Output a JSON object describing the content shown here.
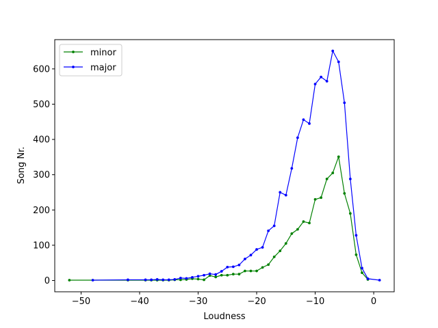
{
  "chart_data": {
    "type": "line",
    "title": "",
    "xlabel": "Loudness",
    "ylabel": "Song Nr.",
    "xlim": [
      -54.5,
      3.5
    ],
    "ylim": [
      -32,
      683
    ],
    "xticks": [
      -50,
      -40,
      -30,
      -20,
      -10,
      0
    ],
    "xtick_labels": [
      "−50",
      "−40",
      "−30",
      "−20",
      "−10",
      "0"
    ],
    "yticks": [
      0,
      100,
      200,
      300,
      400,
      500,
      600
    ],
    "ytick_labels": [
      "0",
      "100",
      "200",
      "300",
      "400",
      "500",
      "600"
    ],
    "grid": false,
    "legend_position": "top-left",
    "series": [
      {
        "name": "minor",
        "color": "#008000",
        "points": [
          [
            -52,
            1
          ],
          [
            -42,
            1
          ],
          [
            -39,
            1
          ],
          [
            -38,
            1
          ],
          [
            -37,
            1
          ],
          [
            -36,
            1
          ],
          [
            -35,
            1
          ],
          [
            -34,
            2
          ],
          [
            -33,
            2
          ],
          [
            -32,
            3
          ],
          [
            -31,
            5
          ],
          [
            -30,
            4
          ],
          [
            -29,
            2
          ],
          [
            -28,
            14
          ],
          [
            -27,
            10
          ],
          [
            -26,
            15
          ],
          [
            -25,
            15
          ],
          [
            -24,
            18
          ],
          [
            -23,
            18
          ],
          [
            -22,
            27
          ],
          [
            -21,
            27
          ],
          [
            -20,
            27
          ],
          [
            -19,
            37
          ],
          [
            -18,
            45
          ],
          [
            -17,
            67
          ],
          [
            -16,
            84
          ],
          [
            -15,
            105
          ],
          [
            -14,
            133
          ],
          [
            -13,
            145
          ],
          [
            -12,
            167
          ],
          [
            -11,
            163
          ],
          [
            -10,
            230
          ],
          [
            -9,
            235
          ],
          [
            -8,
            288
          ],
          [
            -7,
            305
          ],
          [
            -6,
            351
          ],
          [
            -5,
            247
          ],
          [
            -4,
            190
          ],
          [
            -3,
            73
          ],
          [
            -2,
            22
          ],
          [
            -1,
            3
          ]
        ]
      },
      {
        "name": "major",
        "color": "#0000ff",
        "points": [
          [
            -48,
            1
          ],
          [
            -42,
            2
          ],
          [
            -39,
            2
          ],
          [
            -38,
            2
          ],
          [
            -37,
            3
          ],
          [
            -36,
            2
          ],
          [
            -35,
            2
          ],
          [
            -34,
            3
          ],
          [
            -33,
            7
          ],
          [
            -32,
            6
          ],
          [
            -31,
            9
          ],
          [
            -30,
            12
          ],
          [
            -29,
            15
          ],
          [
            -28,
            19
          ],
          [
            -27,
            17
          ],
          [
            -26,
            26
          ],
          [
            -25,
            38
          ],
          [
            -24,
            39
          ],
          [
            -23,
            44
          ],
          [
            -22,
            61
          ],
          [
            -21,
            72
          ],
          [
            -20,
            88
          ],
          [
            -19,
            94
          ],
          [
            -18,
            141
          ],
          [
            -17,
            155
          ],
          [
            -16,
            250
          ],
          [
            -15,
            242
          ],
          [
            -14,
            318
          ],
          [
            -13,
            405
          ],
          [
            -12,
            456
          ],
          [
            -11,
            445
          ],
          [
            -10,
            557
          ],
          [
            -9,
            577
          ],
          [
            -8,
            565
          ],
          [
            -7,
            651
          ],
          [
            -6,
            620
          ],
          [
            -5,
            504
          ],
          [
            -4,
            288
          ],
          [
            -3,
            128
          ],
          [
            -2,
            35
          ],
          [
            -1,
            5
          ],
          [
            1,
            1
          ]
        ]
      }
    ]
  }
}
